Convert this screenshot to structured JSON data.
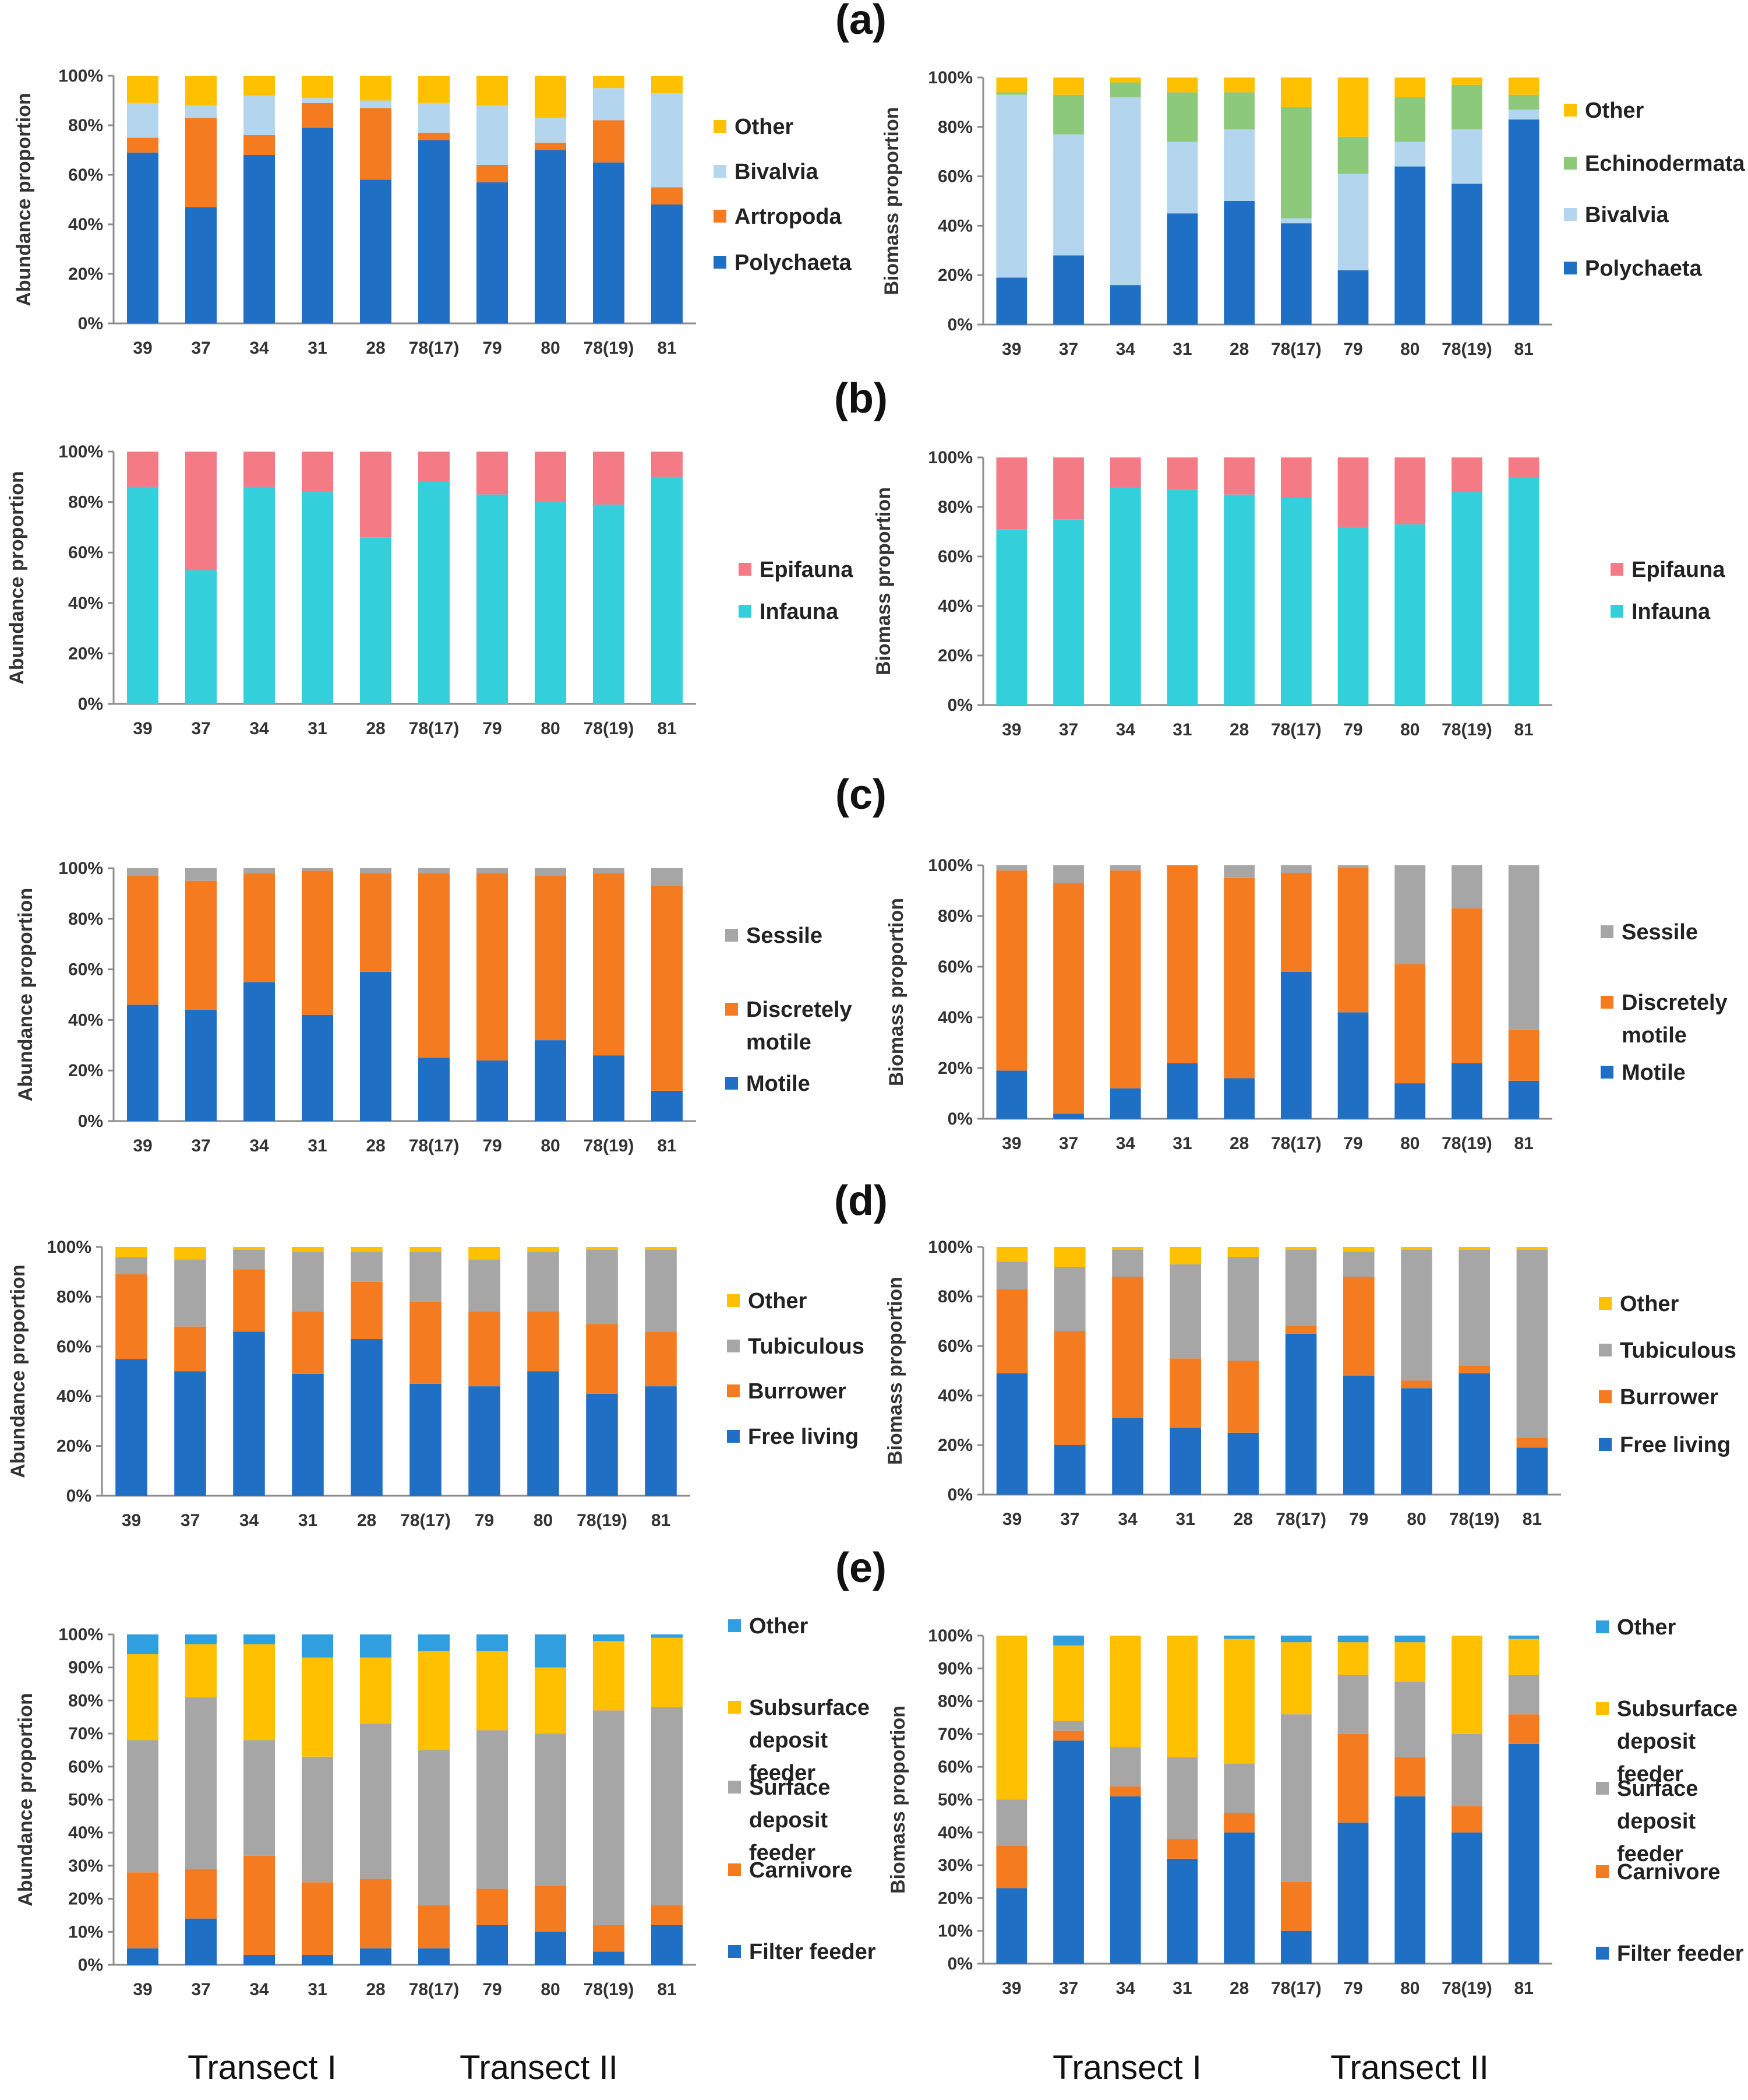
{
  "panels": [
    {
      "letter": "(a)",
      "name": "panel-a"
    },
    {
      "letter": "(b)",
      "name": "panel-b"
    },
    {
      "letter": "(c)",
      "name": "panel-c"
    },
    {
      "letter": "(d)",
      "name": "panel-d"
    },
    {
      "letter": "(e)",
      "name": "panel-e"
    }
  ],
  "transects": [
    "Transect I",
    "Transect II",
    "Transect I",
    "Transect II"
  ],
  "chart_data": [
    {
      "id": "a-left",
      "panel": "(a)",
      "type": "bar",
      "stacked": true,
      "ylabel": "Abundance proportion",
      "ylim": [
        0,
        100
      ],
      "yticks": [
        "0%",
        "20%",
        "40%",
        "60%",
        "80%",
        "100%"
      ],
      "categories": [
        "39",
        "37",
        "34",
        "31",
        "28",
        "78(17)",
        "79",
        "80",
        "78(19)",
        "81"
      ],
      "series": [
        {
          "name": "Polychaeta",
          "color": "#1F6FC5",
          "values": [
            69,
            47,
            68,
            79,
            58,
            74,
            57,
            70,
            65,
            48
          ]
        },
        {
          "name": "Artropoda",
          "color": "#F47B20",
          "values": [
            6,
            36,
            8,
            10,
            29,
            3,
            7,
            3,
            17,
            7
          ]
        },
        {
          "name": "Bivalvia",
          "color": "#B3D6EE",
          "values": [
            14,
            5,
            16,
            2,
            3,
            12,
            24,
            10,
            13,
            38
          ]
        },
        {
          "name": "Other",
          "color": "#FFC000",
          "values": [
            11,
            12,
            8,
            9,
            10,
            11,
            12,
            17,
            5,
            7
          ]
        }
      ],
      "legend": [
        "Other",
        "Bivalvia",
        "Artropoda",
        "Polychaeta"
      ]
    },
    {
      "id": "a-right",
      "panel": "(a)",
      "type": "bar",
      "stacked": true,
      "ylabel": "Biomass proportion",
      "ylim": [
        0,
        100
      ],
      "yticks": [
        "0%",
        "20%",
        "40%",
        "60%",
        "80%",
        "100%"
      ],
      "categories": [
        "39",
        "37",
        "34",
        "31",
        "28",
        "78(17)",
        "79",
        "80",
        "78(19)",
        "81"
      ],
      "series": [
        {
          "name": "Polychaeta",
          "color": "#1F6FC5",
          "values": [
            19,
            28,
            16,
            45,
            50,
            41,
            22,
            64,
            57,
            83
          ]
        },
        {
          "name": "Bivalvia",
          "color": "#B3D6EE",
          "values": [
            74,
            49,
            76,
            29,
            29,
            2,
            39,
            10,
            22,
            4
          ]
        },
        {
          "name": "Echinodermata",
          "color": "#8CC97A",
          "values": [
            1,
            16,
            6,
            20,
            15,
            45,
            15,
            18,
            18,
            6
          ]
        },
        {
          "name": "Other",
          "color": "#FFC000",
          "values": [
            6,
            7,
            2,
            6,
            6,
            12,
            24,
            8,
            3,
            7
          ]
        }
      ],
      "legend": [
        "Other",
        "Echinodermata",
        "Bivalvia",
        "Polychaeta"
      ]
    },
    {
      "id": "b-left",
      "panel": "(b)",
      "type": "bar",
      "stacked": true,
      "ylabel": "Abundance proportion",
      "ylim": [
        0,
        100
      ],
      "yticks": [
        "0%",
        "20%",
        "40%",
        "60%",
        "80%",
        "100%"
      ],
      "categories": [
        "39",
        "37",
        "34",
        "31",
        "28",
        "78(17)",
        "79",
        "80",
        "78(19)",
        "81"
      ],
      "series": [
        {
          "name": "Infauna",
          "color": "#33D0DB",
          "values": [
            86,
            53,
            86,
            84,
            66,
            88,
            83,
            80,
            79,
            90
          ]
        },
        {
          "name": "Epifauna",
          "color": "#F47A86",
          "values": [
            14,
            47,
            14,
            16,
            34,
            12,
            17,
            20,
            21,
            10
          ]
        }
      ],
      "legend": [
        "Epifauna",
        "Infauna"
      ]
    },
    {
      "id": "b-right",
      "panel": "(b)",
      "type": "bar",
      "stacked": true,
      "ylabel": "Biomass proportion",
      "ylim": [
        0,
        100
      ],
      "yticks": [
        "0%",
        "20%",
        "40%",
        "60%",
        "80%",
        "100%"
      ],
      "categories": [
        "39",
        "37",
        "34",
        "31",
        "28",
        "78(17)",
        "79",
        "80",
        "78(19)",
        "81"
      ],
      "series": [
        {
          "name": "Infauna",
          "color": "#33D0DB",
          "values": [
            71,
            75,
            88,
            87,
            85,
            84,
            72,
            73,
            86,
            92
          ]
        },
        {
          "name": "Epifauna",
          "color": "#F47A86",
          "values": [
            29,
            25,
            12,
            13,
            15,
            16,
            28,
            27,
            14,
            8
          ]
        }
      ],
      "legend": [
        "Epifauna",
        "Infauna"
      ]
    },
    {
      "id": "c-left",
      "panel": "(c)",
      "type": "bar",
      "stacked": true,
      "ylabel": "Abundance proportion",
      "ylim": [
        0,
        100
      ],
      "yticks": [
        "0%",
        "20%",
        "40%",
        "60%",
        "80%",
        "100%"
      ],
      "categories": [
        "39",
        "37",
        "34",
        "31",
        "28",
        "78(17)",
        "79",
        "80",
        "78(19)",
        "81"
      ],
      "series": [
        {
          "name": "Motile",
          "color": "#1F6FC5",
          "values": [
            46,
            44,
            55,
            42,
            59,
            25,
            24,
            32,
            26,
            12
          ]
        },
        {
          "name": "Discretely motile",
          "color": "#F47B20",
          "values": [
            51,
            51,
            43,
            57,
            39,
            73,
            74,
            65,
            72,
            81
          ]
        },
        {
          "name": "Sessile",
          "color": "#A6A6A6",
          "values": [
            3,
            5,
            2,
            1,
            2,
            2,
            2,
            3,
            2,
            7
          ]
        }
      ],
      "legend": [
        "Sessile",
        "Discretely motile",
        "Motile"
      ]
    },
    {
      "id": "c-right",
      "panel": "(c)",
      "type": "bar",
      "stacked": true,
      "ylabel": "Biomass proportion",
      "ylim": [
        0,
        100
      ],
      "yticks": [
        "0%",
        "20%",
        "40%",
        "60%",
        "80%",
        "100%"
      ],
      "categories": [
        "39",
        "37",
        "34",
        "31",
        "28",
        "78(17)",
        "79",
        "80",
        "78(19)",
        "81"
      ],
      "series": [
        {
          "name": "Motile",
          "color": "#1F6FC5",
          "values": [
            19,
            2,
            12,
            22,
            16,
            58,
            42,
            14,
            22,
            15
          ]
        },
        {
          "name": "Discretely motile",
          "color": "#F47B20",
          "values": [
            79,
            91,
            86,
            78,
            79,
            39,
            57,
            47,
            61,
            20
          ]
        },
        {
          "name": "Sessile",
          "color": "#A6A6A6",
          "values": [
            2,
            7,
            2,
            0,
            5,
            3,
            1,
            39,
            17,
            65
          ]
        }
      ],
      "legend": [
        "Sessile",
        "Discretely motile",
        "Motile"
      ]
    },
    {
      "id": "d-left",
      "panel": "(d)",
      "type": "bar",
      "stacked": true,
      "ylabel": "Abundance proportion",
      "ylim": [
        0,
        100
      ],
      "yticks": [
        "0%",
        "20%",
        "40%",
        "60%",
        "80%",
        "100%"
      ],
      "categories": [
        "39",
        "37",
        "34",
        "31",
        "28",
        "78(17)",
        "79",
        "80",
        "78(19)",
        "81"
      ],
      "series": [
        {
          "name": "Free living",
          "color": "#1F6FC5",
          "values": [
            55,
            50,
            66,
            49,
            63,
            45,
            44,
            50,
            41,
            44
          ]
        },
        {
          "name": "Burrower",
          "color": "#F47B20",
          "values": [
            34,
            18,
            25,
            25,
            23,
            33,
            30,
            24,
            28,
            22
          ]
        },
        {
          "name": "Tubiculous",
          "color": "#A6A6A6",
          "values": [
            7,
            27,
            8,
            24,
            12,
            20,
            21,
            24,
            30,
            33
          ]
        },
        {
          "name": "Other",
          "color": "#FFC000",
          "values": [
            4,
            5,
            1,
            2,
            2,
            2,
            5,
            2,
            1,
            1
          ]
        }
      ],
      "legend": [
        "Other",
        "Tubiculous",
        "Burrower",
        "Free living"
      ]
    },
    {
      "id": "d-right",
      "panel": "(d)",
      "type": "bar",
      "stacked": true,
      "ylabel": "Biomass proportion",
      "ylim": [
        0,
        100
      ],
      "yticks": [
        "0%",
        "20%",
        "40%",
        "60%",
        "80%",
        "100%"
      ],
      "categories": [
        "39",
        "37",
        "34",
        "31",
        "28",
        "78(17)",
        "79",
        "80",
        "78(19)",
        "81"
      ],
      "series": [
        {
          "name": "Free living",
          "color": "#1F6FC5",
          "values": [
            49,
            20,
            31,
            27,
            25,
            65,
            48,
            43,
            49,
            19
          ]
        },
        {
          "name": "Burrower",
          "color": "#F47B20",
          "values": [
            34,
            46,
            57,
            28,
            29,
            3,
            40,
            3,
            3,
            4
          ]
        },
        {
          "name": "Tubiculous",
          "color": "#A6A6A6",
          "values": [
            11,
            26,
            11,
            38,
            42,
            31,
            10,
            53,
            47,
            76
          ]
        },
        {
          "name": "Other",
          "color": "#FFC000",
          "values": [
            6,
            8,
            1,
            7,
            4,
            1,
            2,
            1,
            1,
            1
          ]
        }
      ],
      "legend": [
        "Other",
        "Tubiculous",
        "Burrower",
        "Free living"
      ]
    },
    {
      "id": "e-left",
      "panel": "(e)",
      "type": "bar",
      "stacked": true,
      "ylabel": "Abundance proportion",
      "ylim": [
        0,
        100
      ],
      "yticks": [
        "0%",
        "10%",
        "20%",
        "30%",
        "40%",
        "50%",
        "60%",
        "70%",
        "80%",
        "90%",
        "100%"
      ],
      "categories": [
        "39",
        "37",
        "34",
        "31",
        "28",
        "78(17)",
        "79",
        "80",
        "78(19)",
        "81"
      ],
      "series": [
        {
          "name": "Filter feeder",
          "color": "#1F6FC5",
          "values": [
            5,
            14,
            3,
            3,
            5,
            5,
            12,
            10,
            4,
            12
          ]
        },
        {
          "name": "Carnivore",
          "color": "#F47B20",
          "values": [
            23,
            15,
            30,
            22,
            21,
            13,
            11,
            14,
            8,
            6
          ]
        },
        {
          "name": "Surface deposit feeder",
          "color": "#A6A6A6",
          "values": [
            40,
            52,
            35,
            38,
            47,
            47,
            48,
            46,
            65,
            60
          ]
        },
        {
          "name": "Subsurface deposit feeder",
          "color": "#FFC000",
          "values": [
            26,
            16,
            29,
            30,
            20,
            30,
            24,
            20,
            21,
            21
          ]
        },
        {
          "name": "Other",
          "color": "#2F9FE0",
          "values": [
            6,
            3,
            3,
            7,
            7,
            5,
            5,
            10,
            2,
            1
          ]
        }
      ],
      "legend": [
        "Other",
        "Subsurface deposit feeder",
        "Surface deposit feeder",
        "Carnivore",
        "Filter feeder"
      ]
    },
    {
      "id": "e-right",
      "panel": "(e)",
      "type": "bar",
      "stacked": true,
      "ylabel": "Biomass proportion",
      "ylim": [
        0,
        100
      ],
      "yticks": [
        "0%",
        "10%",
        "20%",
        "30%",
        "40%",
        "50%",
        "60%",
        "70%",
        "80%",
        "90%",
        "100%"
      ],
      "categories": [
        "39",
        "37",
        "34",
        "31",
        "28",
        "78(17)",
        "79",
        "80",
        "78(19)",
        "81"
      ],
      "series": [
        {
          "name": "Filter feeder",
          "color": "#1F6FC5",
          "values": [
            23,
            68,
            51,
            32,
            40,
            10,
            43,
            51,
            40,
            67
          ]
        },
        {
          "name": "Carnivore",
          "color": "#F47B20",
          "values": [
            13,
            3,
            3,
            6,
            6,
            15,
            27,
            12,
            8,
            9
          ]
        },
        {
          "name": "Surface deposit feeder",
          "color": "#A6A6A6",
          "values": [
            14,
            3,
            12,
            25,
            15,
            51,
            18,
            23,
            22,
            12
          ]
        },
        {
          "name": "Subsurface deposit feeder",
          "color": "#FFC000",
          "values": [
            50,
            23,
            34,
            37,
            38,
            22,
            10,
            12,
            30,
            11
          ]
        },
        {
          "name": "Other",
          "color": "#2F9FE0",
          "values": [
            0,
            3,
            0,
            0,
            1,
            2,
            2,
            2,
            0,
            1
          ]
        }
      ],
      "legend": [
        "Other",
        "Subsurface deposit feeder",
        "Surface deposit feeder",
        "Carnivore",
        "Filter feeder"
      ]
    }
  ]
}
